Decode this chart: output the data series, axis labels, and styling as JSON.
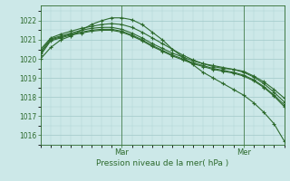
{
  "title": "Pression niveau de la mer( hPa )",
  "bg_color": "#cce8e8",
  "grid_color": "#a0c8c8",
  "line_color": "#2d6a2d",
  "ylim": [
    1015.5,
    1022.8
  ],
  "yticks": [
    1016,
    1017,
    1018,
    1019,
    1020,
    1021,
    1022
  ],
  "xlim": [
    0,
    24
  ],
  "x_mar_pos": 8,
  "x_mer_pos": 20,
  "series": [
    [
      1020.0,
      1020.6,
      1021.0,
      1021.2,
      1021.5,
      1021.8,
      1022.0,
      1022.15,
      1022.15,
      1022.05,
      1021.8,
      1021.4,
      1021.0,
      1020.5,
      1020.1,
      1019.7,
      1019.3,
      1019.0,
      1018.7,
      1018.4,
      1018.1,
      1017.7,
      1017.2,
      1016.6,
      1015.7
    ],
    [
      1020.5,
      1021.1,
      1021.3,
      1021.45,
      1021.6,
      1021.7,
      1021.8,
      1021.85,
      1021.8,
      1021.65,
      1021.4,
      1021.1,
      1020.8,
      1020.5,
      1020.2,
      1019.95,
      1019.75,
      1019.6,
      1019.5,
      1019.45,
      1019.35,
      1019.1,
      1018.8,
      1018.4,
      1017.95
    ],
    [
      1020.4,
      1021.05,
      1021.2,
      1021.35,
      1021.5,
      1021.6,
      1021.65,
      1021.65,
      1021.55,
      1021.35,
      1021.1,
      1020.8,
      1020.55,
      1020.3,
      1020.1,
      1019.9,
      1019.75,
      1019.65,
      1019.55,
      1019.45,
      1019.3,
      1019.05,
      1018.7,
      1018.25,
      1017.75
    ],
    [
      1020.3,
      1021.0,
      1021.15,
      1021.3,
      1021.4,
      1021.5,
      1021.55,
      1021.55,
      1021.45,
      1021.25,
      1021.0,
      1020.7,
      1020.45,
      1020.2,
      1020.0,
      1019.8,
      1019.65,
      1019.5,
      1019.4,
      1019.3,
      1019.15,
      1018.9,
      1018.55,
      1018.1,
      1017.6
    ],
    [
      1020.2,
      1020.95,
      1021.1,
      1021.25,
      1021.35,
      1021.45,
      1021.5,
      1021.5,
      1021.4,
      1021.2,
      1020.95,
      1020.65,
      1020.4,
      1020.15,
      1019.95,
      1019.75,
      1019.6,
      1019.45,
      1019.35,
      1019.25,
      1019.1,
      1018.85,
      1018.5,
      1018.05,
      1017.5
    ]
  ]
}
